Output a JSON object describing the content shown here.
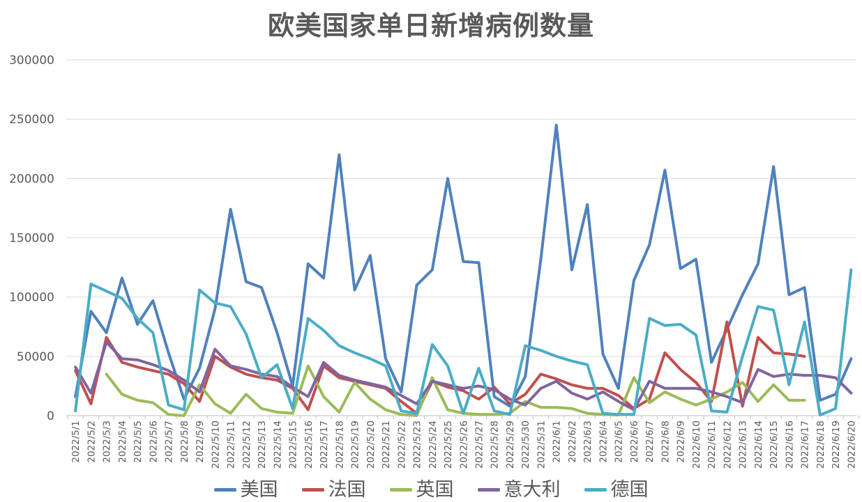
{
  "chart_data": {
    "type": "line",
    "title": "欧美国家单日新增病例数量",
    "xlabel": "",
    "ylabel": "",
    "ylim": [
      0,
      300000
    ],
    "y_step": 50000,
    "y_ticks": [
      0,
      50000,
      100000,
      150000,
      200000,
      250000,
      300000
    ],
    "grid": "horizontal",
    "legend_position": "bottom",
    "axis_text_color": "#595959",
    "gridline_color": "#d9d9d9",
    "axisline_color": "#bfbfbf",
    "categories": [
      "2022/5/1",
      "2022/5/2",
      "2022/5/3",
      "2022/5/4",
      "2022/5/5",
      "2022/5/6",
      "2022/5/7",
      "2022/5/8",
      "2022/5/9",
      "2022/5/10",
      "2022/5/11",
      "2022/5/12",
      "2022/5/13",
      "2022/5/14",
      "2022/5/15",
      "2022/5/16",
      "2022/5/17",
      "2022/5/18",
      "2022/5/19",
      "2022/5/20",
      "2022/5/21",
      "2022/5/22",
      "2022/5/23",
      "2022/5/24",
      "2022/5/25",
      "2022/5/26",
      "2022/5/27",
      "2022/5/28",
      "2022/5/29",
      "2022/5/30",
      "2022/5/31",
      "2022/6/1",
      "2022/6/2",
      "2022/6/3",
      "2022/6/4",
      "2022/6/5",
      "2022/6/6",
      "2022/6/7",
      "2022/6/8",
      "2022/6/9",
      "2022/6/10",
      "2022/6/11",
      "2022/6/12",
      "2022/6/13",
      "2022/6/14",
      "2022/6/15",
      "2022/6/16",
      "2022/6/17",
      "2022/6/18",
      "2022/6/19",
      "2022/6/20"
    ],
    "series": [
      {
        "name": "美国",
        "color": "#4F81BD",
        "values": [
          16000,
          88000,
          70000,
          116000,
          77000,
          97000,
          53000,
          14000,
          40000,
          90000,
          174000,
          113000,
          108000,
          70000,
          25000,
          128000,
          116000,
          220000,
          106000,
          135000,
          48000,
          20000,
          110000,
          123000,
          200000,
          130000,
          129000,
          16000,
          8000,
          33000,
          132000,
          245000,
          123000,
          178000,
          52000,
          23000,
          114000,
          144000,
          207000,
          124000,
          132000,
          45000,
          73000,
          102000,
          128000,
          210000,
          102000,
          108000,
          13000,
          18000,
          48000
        ]
      },
      {
        "name": "法国",
        "color": "#C0504D",
        "values": [
          38000,
          10000,
          66000,
          45000,
          41000,
          38000,
          35000,
          27000,
          12000,
          50000,
          41000,
          35000,
          32000,
          30000,
          23000,
          5000,
          42000,
          32000,
          29000,
          26000,
          23000,
          12000,
          2000,
          29000,
          24000,
          21000,
          14000,
          24000,
          10000,
          18000,
          35000,
          31000,
          26000,
          23000,
          23000,
          17000,
          6000,
          14000,
          53000,
          39000,
          28000,
          12000,
          79000,
          8000,
          66000,
          53000,
          52000,
          50000,
          null,
          null,
          null
        ]
      },
      {
        "name": "英国",
        "color": "#9BBB59",
        "values": [
          null,
          null,
          35000,
          18000,
          13000,
          11000,
          1000,
          0,
          26000,
          10000,
          2000,
          18000,
          6000,
          3000,
          2000,
          42000,
          16000,
          3000,
          28000,
          14000,
          5000,
          1000,
          0,
          32000,
          5000,
          2000,
          1000,
          1000,
          2000,
          12000,
          7000,
          7000,
          6000,
          2000,
          1000,
          500,
          32000,
          11000,
          20000,
          14000,
          9000,
          14000,
          20000,
          28000,
          12000,
          26000,
          13000,
          13000,
          null,
          null,
          null
        ]
      },
      {
        "name": "意大利",
        "color": "#8064A2",
        "values": [
          41000,
          19000,
          62000,
          48000,
          47000,
          43000,
          38000,
          30000,
          20000,
          56000,
          42000,
          39000,
          35000,
          33000,
          24000,
          16000,
          45000,
          34000,
          30000,
          27000,
          24000,
          17000,
          10000,
          29000,
          26000,
          23000,
          25000,
          22000,
          14000,
          9000,
          23000,
          29000,
          19000,
          14000,
          20000,
          12000,
          5000,
          29000,
          23000,
          23000,
          23000,
          20000,
          16000,
          11000,
          39000,
          33000,
          35000,
          34000,
          34000,
          32000,
          19000
        ]
      },
      {
        "name": "德国",
        "color": "#4BACC6",
        "values": [
          4000,
          111000,
          105000,
          99000,
          82000,
          70000,
          9000,
          5000,
          106000,
          95000,
          92000,
          69000,
          32000,
          43000,
          6000,
          82000,
          72000,
          59000,
          53000,
          48000,
          42000,
          4000,
          2000,
          60000,
          42000,
          2000,
          40000,
          4000,
          1000,
          59000,
          55000,
          50000,
          46000,
          43000,
          2000,
          1000,
          1000,
          82000,
          76000,
          77000,
          68000,
          4000,
          3000,
          50000,
          92000,
          89000,
          26000,
          79000,
          500,
          6000,
          123000
        ]
      }
    ]
  }
}
